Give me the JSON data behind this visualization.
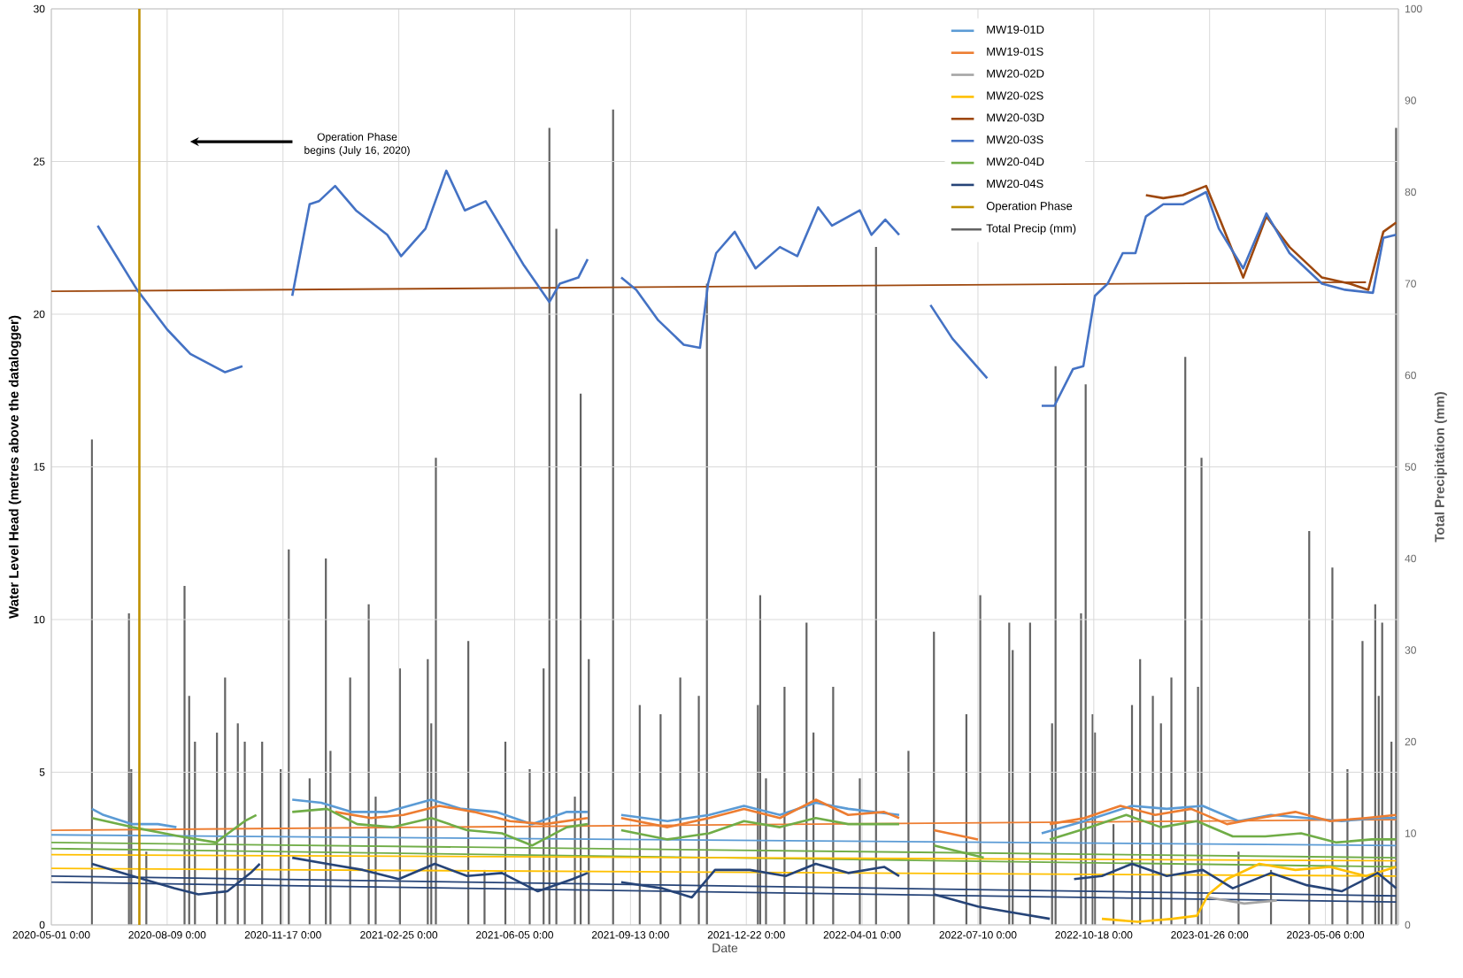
{
  "chart_data": {
    "type": "line",
    "xlabel": "Date",
    "ylabel": "Water Level Head (metres above the datalogger)",
    "y2label": "Total Precipitation (mm)",
    "annotations": [
      "Operation Phase begins (July 16, 2020)"
    ],
    "xlim": [
      "2020-05-01",
      "2023-07-08"
    ],
    "xticks": [
      {
        "value": "2020-05-01",
        "label": "2020-05-01 0:00"
      },
      {
        "value": "2020-08-09",
        "label": "2020-08-09 0:00"
      },
      {
        "value": "2020-11-17",
        "label": "2020-11-17 0:00"
      },
      {
        "value": "2021-02-25",
        "label": "2021-02-25 0:00"
      },
      {
        "value": "2021-06-05",
        "label": "2021-06-05 0:00"
      },
      {
        "value": "2021-09-13",
        "label": "2021-09-13 0:00"
      },
      {
        "value": "2021-12-22",
        "label": "2021-12-22 0:00"
      },
      {
        "value": "2022-04-01",
        "label": "2022-04-01 0:00"
      },
      {
        "value": "2022-07-10",
        "label": "2022-07-10 0:00"
      },
      {
        "value": "2022-10-18",
        "label": "2022-10-18 0:00"
      },
      {
        "value": "2023-01-26",
        "label": "2023-01-26 0:00"
      },
      {
        "value": "2023-05-06",
        "label": "2023-05-06 0:00"
      }
    ],
    "ylim": [
      0,
      30
    ],
    "yticks": [
      0,
      5,
      10,
      15,
      20,
      25,
      30
    ],
    "y2lim": [
      0,
      100
    ],
    "y2ticks": [
      0,
      10,
      20,
      30,
      40,
      50,
      60,
      70,
      80,
      90,
      100
    ],
    "grid": true,
    "legend": "top",
    "marker": "none",
    "line_style": "solid",
    "series": [
      {
        "color": "#9e480e",
        "x": [
          "2020-05-01",
          "2023-06-10"
        ],
        "values": [
          20.75,
          21.05
        ]
      },
      {
        "color": "#ed7d31",
        "x": [
          "2020-05-01",
          "2023-07-06"
        ],
        "values": [
          3.1,
          3.45
        ]
      },
      {
        "color": "#5b9bd5",
        "x": [
          "2020-05-01",
          "2023-07-06"
        ],
        "values": [
          2.95,
          2.6
        ]
      },
      {
        "color": "#70ad47",
        "x": [
          "2020-05-01",
          "2023-07-06"
        ],
        "values": [
          2.7,
          2.2
        ]
      },
      {
        "color": "#70ad47",
        "x": [
          "2020-05-01",
          "2023-07-06"
        ],
        "values": [
          2.5,
          1.9
        ]
      },
      {
        "color": "#ffc000",
        "x": [
          "2020-05-01",
          "2023-07-06"
        ],
        "values": [
          2.3,
          2.1
        ]
      },
      {
        "color": "#ffc000",
        "x": [
          "2020-05-01",
          "2023-07-06"
        ],
        "values": [
          1.85,
          1.6
        ]
      },
      {
        "color": "#264478",
        "x": [
          "2020-05-01",
          "2023-07-06"
        ],
        "values": [
          1.6,
          0.95
        ]
      },
      {
        "color": "#264478",
        "x": [
          "2020-05-01",
          "2023-07-06"
        ],
        "values": [
          1.4,
          0.75
        ]
      },
      {
        "name": "MW19-01D",
        "color": "#5b9bd5",
        "x": [
          "2020-06-05",
          "2020-06-15",
          "2020-07-10",
          "2020-08-01",
          "2020-08-17",
          "2020-10-01",
          "2020-11-25",
          "2020-12-20",
          "2021-01-15",
          "2021-02-15",
          "2021-03-25",
          "2021-04-20",
          "2021-05-20",
          "2021-06-20",
          "2021-07-20",
          "2021-08-07",
          "2021-08-20",
          "2021-09-05",
          "2021-10-15",
          "2021-11-20",
          "2021-12-20",
          "2022-01-20",
          "2022-02-20",
          "2022-03-20",
          "2022-05-03",
          "2022-07-01",
          "2022-09-03",
          "2022-10-10",
          "2022-11-20",
          "2022-12-20",
          "2023-01-20",
          "2023-02-20",
          "2023-03-20",
          "2023-04-20",
          "2023-05-20",
          "2023-06-20",
          "2023-07-06"
        ],
        "values": [
          3.8,
          3.6,
          3.3,
          3.3,
          3.2,
          null,
          4.1,
          4.0,
          3.7,
          3.7,
          4.1,
          3.8,
          3.7,
          3.3,
          3.7,
          3.7,
          null,
          3.6,
          3.4,
          3.6,
          3.9,
          3.6,
          4.0,
          3.8,
          3.6,
          null,
          3.0,
          3.4,
          3.9,
          3.8,
          3.9,
          3.4,
          3.6,
          3.5,
          3.4,
          3.5,
          3.5
        ]
      },
      {
        "name": "MW19-01S",
        "color": "#ed7d31",
        "x": [
          "2021-01-01",
          "2021-02-01",
          "2021-03-01",
          "2021-04-01",
          "2021-05-01",
          "2021-06-01",
          "2021-07-01",
          "2021-08-07",
          "2021-08-20",
          "2021-09-05",
          "2021-10-15",
          "2021-11-20",
          "2021-12-20",
          "2022-01-20",
          "2022-02-20",
          "2022-03-20",
          "2022-04-20",
          "2022-05-03",
          "2022-05-20",
          "2022-06-02",
          "2022-07-10",
          "2022-08-20",
          "2022-09-10",
          "2022-10-10",
          "2022-11-10",
          "2022-12-10",
          "2023-01-10",
          "2023-02-10",
          "2023-03-10",
          "2023-04-10",
          "2023-05-10",
          "2023-06-10",
          "2023-07-06"
        ],
        "values": [
          3.7,
          3.5,
          3.6,
          3.9,
          3.7,
          3.4,
          3.3,
          3.5,
          null,
          3.5,
          3.2,
          3.5,
          3.8,
          3.5,
          4.1,
          3.6,
          3.7,
          3.5,
          null,
          3.1,
          2.8,
          null,
          3.3,
          3.5,
          3.9,
          3.6,
          3.8,
          3.3,
          3.5,
          3.7,
          3.4,
          3.5,
          3.6
        ]
      },
      {
        "name": "MW20-02D",
        "color": "#a5a5a5",
        "x": [
          "2023-01-25",
          "2023-02-25",
          "2023-03-25"
        ],
        "values": [
          0.9,
          0.7,
          0.8
        ]
      },
      {
        "name": "MW20-02S",
        "color": "#ffc000",
        "x": [
          "2022-10-25",
          "2022-11-25",
          "2022-12-25",
          "2023-01-15",
          "2023-01-25",
          "2023-02-10",
          "2023-03-10",
          "2023-04-10",
          "2023-05-10",
          "2023-06-10",
          "2023-07-06"
        ],
        "values": [
          0.2,
          0.1,
          0.2,
          0.3,
          1.0,
          1.5,
          2.0,
          1.8,
          1.9,
          1.6,
          1.9
        ]
      },
      {
        "name": "MW20-03D",
        "color": "#9e480e",
        "x": [
          "2022-12-02",
          "2022-12-17",
          "2023-01-03",
          "2023-01-23",
          "2023-02-05",
          "2023-02-24",
          "2023-03-16",
          "2023-04-05",
          "2023-05-03",
          "2023-05-27",
          "2023-06-12",
          "2023-06-25",
          "2023-07-06"
        ],
        "values": [
          23.9,
          23.8,
          23.9,
          24.2,
          23.0,
          21.2,
          23.2,
          22.2,
          21.2,
          21.0,
          20.8,
          22.7,
          23.0
        ]
      },
      {
        "name": "MW20-03S",
        "color": "#4472c4",
        "x": [
          "2020-06-10",
          "2020-07-14",
          "2020-08-09",
          "2020-08-29",
          "2020-09-28",
          "2020-10-13",
          "2020-11-01",
          "2020-11-25",
          "2020-12-10",
          "2020-12-18",
          "2021-01-01",
          "2021-01-19",
          "2021-02-15",
          "2021-02-27",
          "2021-03-20",
          "2021-04-07",
          "2021-04-23",
          "2021-05-11",
          "2021-06-13",
          "2021-07-05",
          "2021-07-14",
          "2021-07-30",
          "2021-08-07",
          "2021-08-20",
          "2021-09-05",
          "2021-09-18",
          "2021-10-07",
          "2021-10-29",
          "2021-11-12",
          "2021-11-19",
          "2021-11-26",
          "2021-12-12",
          "2021-12-30",
          "2022-01-20",
          "2022-02-04",
          "2022-02-22",
          "2022-03-06",
          "2022-03-30",
          "2022-04-09",
          "2022-04-21",
          "2022-05-03",
          "2022-05-15",
          "2022-05-30",
          "2022-06-18",
          "2022-07-18",
          "2022-08-10",
          "2022-09-03",
          "2022-09-14",
          "2022-09-30",
          "2022-10-09",
          "2022-10-19",
          "2022-10-30",
          "2022-11-12",
          "2022-11-23",
          "2022-12-02",
          "2022-12-17",
          "2023-01-03",
          "2023-01-23",
          "2023-02-03",
          "2023-02-24",
          "2023-03-16",
          "2023-04-05",
          "2023-05-03",
          "2023-05-23",
          "2023-06-16",
          "2023-06-25",
          "2023-07-06"
        ],
        "values": [
          22.9,
          20.8,
          19.5,
          18.7,
          18.1,
          18.3,
          null,
          20.6,
          23.6,
          23.7,
          24.2,
          23.4,
          22.6,
          21.9,
          22.8,
          24.7,
          23.4,
          23.7,
          21.6,
          20.4,
          21.0,
          21.2,
          21.8,
          null,
          21.2,
          20.8,
          19.8,
          19.0,
          18.9,
          21.0,
          22.0,
          22.7,
          21.5,
          22.2,
          21.9,
          23.5,
          22.9,
          23.4,
          22.6,
          23.1,
          22.6,
          null,
          20.3,
          19.2,
          17.9,
          null,
          17.0,
          17.0,
          18.2,
          18.3,
          20.6,
          21.0,
          22.0,
          22.0,
          23.2,
          23.6,
          23.6,
          24.0,
          22.8,
          21.5,
          23.3,
          22.0,
          21.0,
          20.8,
          20.7,
          22.5,
          22.6
        ]
      },
      {
        "name": "MW20-04D",
        "color": "#70ad47",
        "x": [
          "2020-06-05",
          "2020-07-10",
          "2020-08-20",
          "2020-09-20",
          "2020-10-15",
          "2020-10-25",
          "2020-11-10",
          "2020-11-25",
          "2020-12-25",
          "2021-01-20",
          "2021-02-20",
          "2021-03-25",
          "2021-04-25",
          "2021-05-25",
          "2021-06-20",
          "2021-07-20",
          "2021-08-07",
          "2021-08-20",
          "2021-09-05",
          "2021-10-15",
          "2021-11-20",
          "2021-12-20",
          "2022-01-20",
          "2022-02-20",
          "2022-03-20",
          "2022-05-03",
          "2022-05-20",
          "2022-06-02",
          "2022-07-15",
          "2022-08-20",
          "2022-09-10",
          "2022-10-15",
          "2022-11-15",
          "2022-12-15",
          "2023-01-15",
          "2023-02-15",
          "2023-03-15",
          "2023-04-15",
          "2023-05-15",
          "2023-06-15",
          "2023-07-06"
        ],
        "values": [
          3.5,
          3.2,
          2.9,
          2.7,
          3.4,
          3.6,
          null,
          3.7,
          3.8,
          3.3,
          3.2,
          3.5,
          3.1,
          3.0,
          2.6,
          3.2,
          3.3,
          null,
          3.1,
          2.8,
          3.0,
          3.4,
          3.2,
          3.5,
          3.3,
          3.3,
          null,
          2.6,
          2.2,
          null,
          2.8,
          3.2,
          3.6,
          3.2,
          3.4,
          2.9,
          2.9,
          3.0,
          2.7,
          2.8,
          2.8
        ]
      },
      {
        "name": "MW20-04S",
        "color": "#264478",
        "x": [
          "2020-06-05",
          "2020-07-10",
          "2020-08-15",
          "2020-09-05",
          "2020-09-30",
          "2020-10-20",
          "2020-10-28",
          "2020-11-10",
          "2020-11-25",
          "2020-12-25",
          "2021-01-25",
          "2021-02-25",
          "2021-03-28",
          "2021-04-25",
          "2021-05-25",
          "2021-06-25",
          "2021-07-25",
          "2021-08-07",
          "2021-08-20",
          "2021-09-05",
          "2021-10-10",
          "2021-11-05",
          "2021-11-25",
          "2021-12-25",
          "2022-01-25",
          "2022-02-20",
          "2022-03-20",
          "2022-04-20",
          "2022-05-03",
          "2022-05-20",
          "2022-06-02",
          "2022-07-10",
          "2022-08-10",
          "2022-09-10",
          "2022-09-20",
          "2022-10-01",
          "2022-10-25",
          "2022-11-20",
          "2022-12-20",
          "2023-01-20",
          "2023-02-15",
          "2023-03-20",
          "2023-04-20",
          "2023-05-20",
          "2023-06-20",
          "2023-07-06"
        ],
        "values": [
          2.0,
          1.6,
          1.2,
          1.0,
          1.1,
          1.7,
          2.0,
          null,
          2.2,
          2.0,
          1.8,
          1.5,
          2.0,
          1.6,
          1.7,
          1.1,
          1.5,
          1.7,
          null,
          1.4,
          1.2,
          0.9,
          1.8,
          1.8,
          1.6,
          2.0,
          1.7,
          1.9,
          1.6,
          null,
          1.0,
          0.6,
          0.4,
          0.2,
          null,
          1.5,
          1.6,
          2.0,
          1.6,
          1.8,
          1.2,
          1.7,
          1.3,
          1.1,
          1.7,
          1.2
        ]
      },
      {
        "name": "Operation Phase",
        "color": "#bf9000",
        "x": [
          "2020-07-16",
          "2020-07-16"
        ],
        "values": [
          0,
          30
        ]
      },
      {
        "name": "Total Precip (mm)",
        "type": "bar",
        "axis": "y2",
        "color": "#636363",
        "x": [
          "2020-06-05",
          "2020-07-07",
          "2020-07-09",
          "2020-07-22",
          "2020-08-24",
          "2020-08-28",
          "2020-09-02",
          "2020-09-21",
          "2020-09-28",
          "2020-10-09",
          "2020-10-15",
          "2020-10-30",
          "2020-11-15",
          "2020-11-22",
          "2020-12-10",
          "2020-12-24",
          "2020-12-28",
          "2021-01-14",
          "2021-01-30",
          "2021-02-05",
          "2021-02-26",
          "2021-03-22",
          "2021-03-25",
          "2021-03-29",
          "2021-04-26",
          "2021-05-10",
          "2021-05-28",
          "2021-06-18",
          "2021-06-30",
          "2021-07-05",
          "2021-07-11",
          "2021-07-27",
          "2021-08-01",
          "2021-08-08",
          "2021-08-29",
          "2021-09-21",
          "2021-10-09",
          "2021-10-26",
          "2021-11-11",
          "2021-11-18",
          "2022-01-01",
          "2022-01-03",
          "2022-01-08",
          "2022-01-24",
          "2022-02-12",
          "2022-02-18",
          "2022-03-07",
          "2022-03-30",
          "2022-04-13",
          "2022-05-11",
          "2022-06-02",
          "2022-06-30",
          "2022-07-12",
          "2022-08-06",
          "2022-08-09",
          "2022-08-24",
          "2022-09-12",
          "2022-09-15",
          "2022-10-07",
          "2022-10-11",
          "2022-10-17",
          "2022-10-19",
          "2022-11-04",
          "2022-11-20",
          "2022-11-27",
          "2022-12-08",
          "2022-12-15",
          "2022-12-24",
          "2023-01-05",
          "2023-01-16",
          "2023-01-19",
          "2023-02-20",
          "2023-03-20",
          "2023-04-22",
          "2023-05-12",
          "2023-05-25",
          "2023-06-07",
          "2023-06-18",
          "2023-06-21",
          "2023-06-24",
          "2023-07-02",
          "2023-07-06"
        ],
        "values": [
          53,
          34,
          17,
          8,
          37,
          25,
          20,
          21,
          27,
          22,
          20,
          20,
          17,
          41,
          16,
          40,
          19,
          27,
          35,
          14,
          28,
          29,
          22,
          51,
          31,
          6,
          20,
          17,
          28,
          87,
          76,
          14,
          58,
          29,
          89,
          24,
          23,
          27,
          25,
          70,
          24,
          36,
          16,
          26,
          33,
          21,
          26,
          16,
          74,
          19,
          32,
          23,
          36,
          33,
          30,
          33,
          22,
          61,
          34,
          59,
          23,
          21,
          11,
          24,
          29,
          25,
          22,
          27,
          62,
          26,
          51,
          8,
          6,
          43,
          39,
          17,
          31,
          35,
          25,
          33,
          20,
          87
        ]
      }
    ]
  }
}
